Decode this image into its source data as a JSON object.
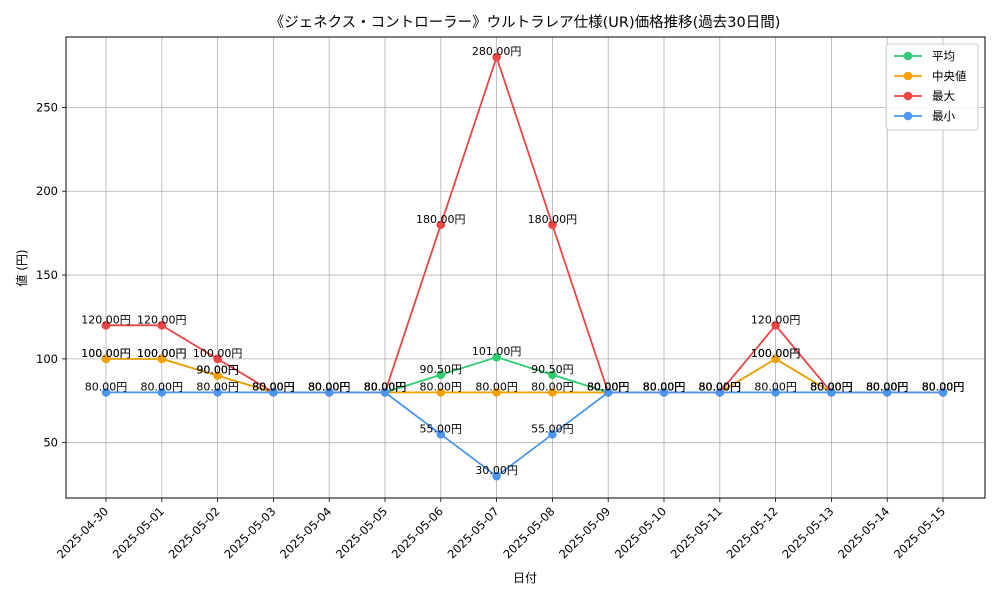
{
  "chart_data": {
    "type": "line",
    "title": "《ジェネクス・コントローラー》ウルトラレア仕様(UR)価格推移(過去30日間)",
    "xlabel": "日付",
    "ylabel": "値 (円)",
    "ylim": [
      17,
      292
    ],
    "yticks": [
      50,
      100,
      150,
      200,
      250
    ],
    "grid": true,
    "legend_position": "top-right",
    "value_suffix": "円",
    "categories": [
      "2025-04-30",
      "2025-05-01",
      "2025-05-02",
      "2025-05-03",
      "2025-05-04",
      "2025-05-05",
      "2025-05-06",
      "2025-05-07",
      "2025-05-08",
      "2025-05-09",
      "2025-05-10",
      "2025-05-11",
      "2025-05-12",
      "2025-05-13",
      "2025-05-14",
      "2025-05-15"
    ],
    "series": [
      {
        "name": "平均",
        "color": "#2ecc71",
        "values": [
          100,
          100,
          90,
          80,
          80,
          80,
          90.5,
          101,
          90.5,
          80,
          80,
          80,
          100,
          80,
          80,
          80
        ]
      },
      {
        "name": "中央値",
        "color": "#f5a000",
        "values": [
          100,
          100,
          90,
          80,
          80,
          80,
          80,
          80,
          80,
          80,
          80,
          80,
          100,
          80,
          80,
          80
        ]
      },
      {
        "name": "最大",
        "color": "#ef4444",
        "values": [
          120,
          120,
          100,
          80,
          80,
          80,
          180,
          280,
          180,
          80,
          80,
          80,
          120,
          80,
          80,
          80
        ]
      },
      {
        "name": "最小",
        "color": "#4a96f0",
        "values": [
          80,
          80,
          80,
          80,
          80,
          80,
          55,
          30,
          55,
          80,
          80,
          80,
          80,
          80,
          80,
          80
        ]
      }
    ]
  }
}
